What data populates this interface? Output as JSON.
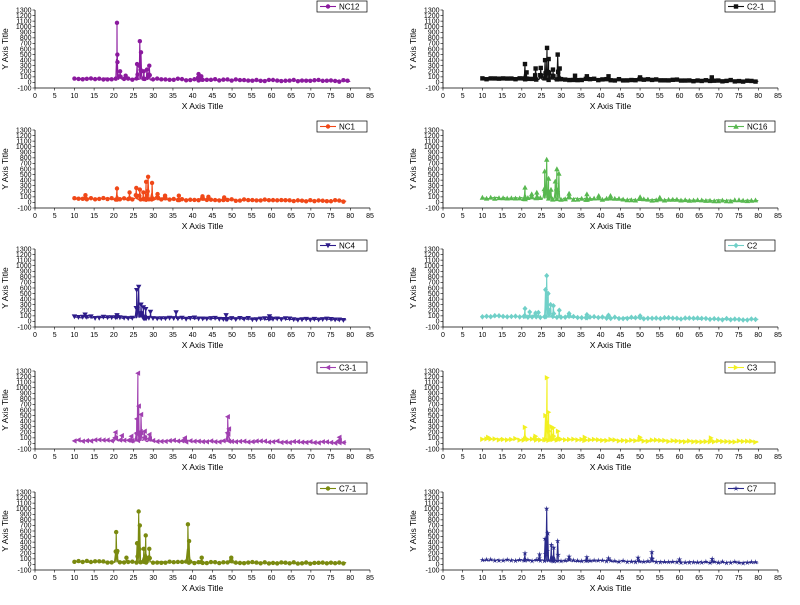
{
  "figure": {
    "x_range": [
      0,
      85
    ],
    "x_ticks": [
      0,
      5,
      10,
      15,
      20,
      25,
      30,
      35,
      40,
      45,
      50,
      55,
      60,
      65,
      70,
      75,
      80,
      85
    ],
    "y_range": [
      -100,
      1300
    ],
    "y_ticks": [
      -100,
      0,
      100,
      200,
      300,
      400,
      500,
      600,
      700,
      800,
      900,
      1000,
      1100,
      1200,
      1300
    ]
  },
  "chart_data": [
    {
      "type": "line",
      "title": "",
      "series_name": "NC12",
      "color": "#8b1a9e",
      "marker": "circle",
      "xlabel": "X Axis Title",
      "ylabel": "Y Axis Title",
      "xlim": [
        0,
        85
      ],
      "ylim": [
        -100,
        1300
      ],
      "x_start": 10,
      "x_end": 80,
      "baseline_start": 70,
      "baseline_end": 25,
      "peaks": [
        [
          20.8,
          1070
        ],
        [
          20.9,
          500
        ],
        [
          21.6,
          200
        ],
        [
          23,
          120
        ],
        [
          25.9,
          330
        ],
        [
          26.6,
          740
        ],
        [
          26.9,
          540
        ],
        [
          27.6,
          200
        ],
        [
          28.4,
          230
        ],
        [
          29.0,
          300
        ],
        [
          41.5,
          150
        ],
        [
          42.2,
          110
        ]
      ]
    },
    {
      "type": "line",
      "title": "",
      "series_name": "NC1",
      "color": "#f04818",
      "marker": "circle",
      "xlabel": "X Axis Title",
      "ylabel": "Y Axis Title",
      "xlim": [
        0,
        85
      ],
      "ylim": [
        -100,
        1300
      ],
      "x_start": 10,
      "x_end": 79,
      "baseline_start": 70,
      "baseline_end": 25,
      "peaks": [
        [
          12.8,
          130
        ],
        [
          20.8,
          250
        ],
        [
          24,
          180
        ],
        [
          25.7,
          260
        ],
        [
          26.6,
          230
        ],
        [
          27.5,
          180
        ],
        [
          28.2,
          370
        ],
        [
          28.7,
          460
        ],
        [
          29.7,
          350
        ],
        [
          31.1,
          150
        ],
        [
          33,
          120
        ],
        [
          36.5,
          120
        ],
        [
          42.5,
          110
        ],
        [
          44,
          100
        ],
        [
          48,
          90
        ]
      ]
    },
    {
      "type": "line",
      "title": "",
      "series_name": "NC4",
      "color": "#2e1c8a",
      "marker": "triangle-down",
      "xlabel": "X Axis Title",
      "ylabel": "Y Axis Title",
      "xlim": [
        0,
        85
      ],
      "ylim": [
        -100,
        1300
      ],
      "x_start": 10,
      "x_end": 79,
      "baseline_start": 75,
      "baseline_end": 30,
      "peaks": [
        [
          12.7,
          120
        ],
        [
          20.8,
          110
        ],
        [
          25.8,
          560
        ],
        [
          26.3,
          620
        ],
        [
          26.9,
          300
        ],
        [
          27.5,
          250
        ],
        [
          28.1,
          220
        ],
        [
          29.3,
          170
        ],
        [
          35.8,
          160
        ],
        [
          48.5,
          110
        ],
        [
          59.5,
          90
        ]
      ]
    },
    {
      "type": "line",
      "title": "",
      "series_name": "C3-1",
      "color": "#a040b0",
      "marker": "triangle-left",
      "xlabel": "X Axis Title",
      "ylabel": "Y Axis Title",
      "xlim": [
        0,
        85
      ],
      "ylim": [
        -100,
        1300
      ],
      "x_start": 10,
      "x_end": 79,
      "baseline_start": 55,
      "baseline_end": 20,
      "peaks": [
        [
          20.4,
          200
        ],
        [
          22,
          140
        ],
        [
          24.4,
          130
        ],
        [
          25.8,
          440
        ],
        [
          26.1,
          1260
        ],
        [
          26.3,
          670
        ],
        [
          26.9,
          520
        ],
        [
          27.8,
          220
        ],
        [
          29,
          160
        ],
        [
          38,
          100
        ],
        [
          48.9,
          480
        ],
        [
          49.2,
          260
        ],
        [
          77.2,
          110
        ]
      ]
    },
    {
      "type": "line",
      "title": "",
      "series_name": "C7-1",
      "color": "#7a8a10",
      "marker": "circle",
      "xlabel": "X Axis Title",
      "ylabel": "Y Axis Title",
      "xlim": [
        0,
        85
      ],
      "ylim": [
        -100,
        1300
      ],
      "x_start": 10,
      "x_end": 79,
      "baseline_start": 50,
      "baseline_end": 20,
      "peaks": [
        [
          20.6,
          580
        ],
        [
          20.9,
          240
        ],
        [
          23.2,
          120
        ],
        [
          25.9,
          380
        ],
        [
          26.3,
          950
        ],
        [
          26.6,
          700
        ],
        [
          27.6,
          280
        ],
        [
          28.1,
          520
        ],
        [
          29,
          280
        ],
        [
          38.8,
          720
        ],
        [
          39.1,
          420
        ],
        [
          42.3,
          120
        ],
        [
          49.8,
          120
        ]
      ]
    },
    {
      "type": "line",
      "title": "",
      "series_name": "C2-1",
      "color": "#111111",
      "marker": "square",
      "xlabel": "X Axis Title",
      "ylabel": "Y Axis Title",
      "xlim": [
        0,
        85
      ],
      "ylim": [
        -100,
        1300
      ],
      "x_start": 10,
      "x_end": 80,
      "baseline_start": 70,
      "baseline_end": 25,
      "peaks": [
        [
          20.8,
          330
        ],
        [
          21.2,
          180
        ],
        [
          23.5,
          250
        ],
        [
          24.8,
          260
        ],
        [
          25.9,
          400
        ],
        [
          26.4,
          620
        ],
        [
          26.8,
          420
        ],
        [
          27.9,
          230
        ],
        [
          29.1,
          500
        ],
        [
          29.6,
          250
        ],
        [
          33.5,
          120
        ],
        [
          36.5,
          110
        ],
        [
          42,
          110
        ],
        [
          50,
          90
        ],
        [
          68.2,
          90
        ]
      ]
    },
    {
      "type": "line",
      "title": "",
      "series_name": "NC16",
      "color": "#58b850",
      "marker": "triangle-up",
      "xlabel": "X Axis Title",
      "ylabel": "Y Axis Title",
      "xlim": [
        0,
        85
      ],
      "ylim": [
        -100,
        1300
      ],
      "x_start": 10,
      "x_end": 80,
      "baseline_start": 80,
      "baseline_end": 30,
      "peaks": [
        [
          20.8,
          270
        ],
        [
          22.5,
          150
        ],
        [
          23.8,
          180
        ],
        [
          25.8,
          560
        ],
        [
          26.3,
          770
        ],
        [
          26.8,
          430
        ],
        [
          27.4,
          230
        ],
        [
          28.5,
          380
        ],
        [
          28.9,
          600
        ],
        [
          29.4,
          520
        ],
        [
          32,
          160
        ],
        [
          36.5,
          150
        ],
        [
          39.5,
          120
        ],
        [
          42.5,
          120
        ],
        [
          50,
          100
        ],
        [
          55,
          90
        ]
      ]
    },
    {
      "type": "line",
      "title": "",
      "series_name": "C2",
      "color": "#70d0c8",
      "marker": "diamond",
      "xlabel": "X Axis Title",
      "ylabel": "Y Axis Title",
      "xlim": [
        0,
        85
      ],
      "ylim": [
        -100,
        1300
      ],
      "x_start": 10,
      "x_end": 80,
      "baseline_start": 95,
      "baseline_end": 35,
      "peaks": [
        [
          20.8,
          230
        ],
        [
          22,
          170
        ],
        [
          23.5,
          150
        ],
        [
          24.2,
          160
        ],
        [
          26,
          570
        ],
        [
          26.3,
          820
        ],
        [
          26.7,
          500
        ],
        [
          27.3,
          300
        ],
        [
          28,
          280
        ],
        [
          29.5,
          200
        ],
        [
          32,
          140
        ],
        [
          36.5,
          120
        ],
        [
          42,
          110
        ],
        [
          50,
          100
        ]
      ]
    },
    {
      "type": "line",
      "title": "",
      "series_name": "C3",
      "color": "#f2f020",
      "marker": "triangle-right",
      "xlabel": "X Axis Title",
      "ylabel": "Y Axis Title",
      "xlim": [
        0,
        85
      ],
      "ylim": [
        -100,
        1300
      ],
      "x_start": 10,
      "x_end": 80,
      "baseline_start": 80,
      "baseline_end": 30,
      "peaks": [
        [
          11.5,
          110
        ],
        [
          20.8,
          290
        ],
        [
          23.5,
          130
        ],
        [
          26,
          500
        ],
        [
          26.4,
          1180
        ],
        [
          26.8,
          560
        ],
        [
          27.5,
          300
        ],
        [
          28,
          280
        ],
        [
          29.2,
          220
        ],
        [
          36,
          110
        ],
        [
          50,
          110
        ],
        [
          68,
          100
        ]
      ]
    },
    {
      "type": "line",
      "title": "",
      "series_name": "C7",
      "color": "#2a2a8a",
      "marker": "star",
      "xlabel": "X Axis Title",
      "ylabel": "Y Axis Title",
      "xlim": [
        0,
        85
      ],
      "ylim": [
        -100,
        1300
      ],
      "x_start": 10,
      "x_end": 80,
      "baseline_start": 80,
      "baseline_end": 30,
      "peaks": [
        [
          20.8,
          200
        ],
        [
          24.5,
          180
        ],
        [
          25.9,
          460
        ],
        [
          26.3,
          1000
        ],
        [
          26.6,
          560
        ],
        [
          27.5,
          350
        ],
        [
          28.1,
          300
        ],
        [
          29.1,
          420
        ],
        [
          32,
          140
        ],
        [
          36.5,
          130
        ],
        [
          42,
          110
        ],
        [
          49.5,
          120
        ],
        [
          53,
          220
        ],
        [
          60,
          90
        ],
        [
          68.3,
          100
        ]
      ]
    }
  ]
}
